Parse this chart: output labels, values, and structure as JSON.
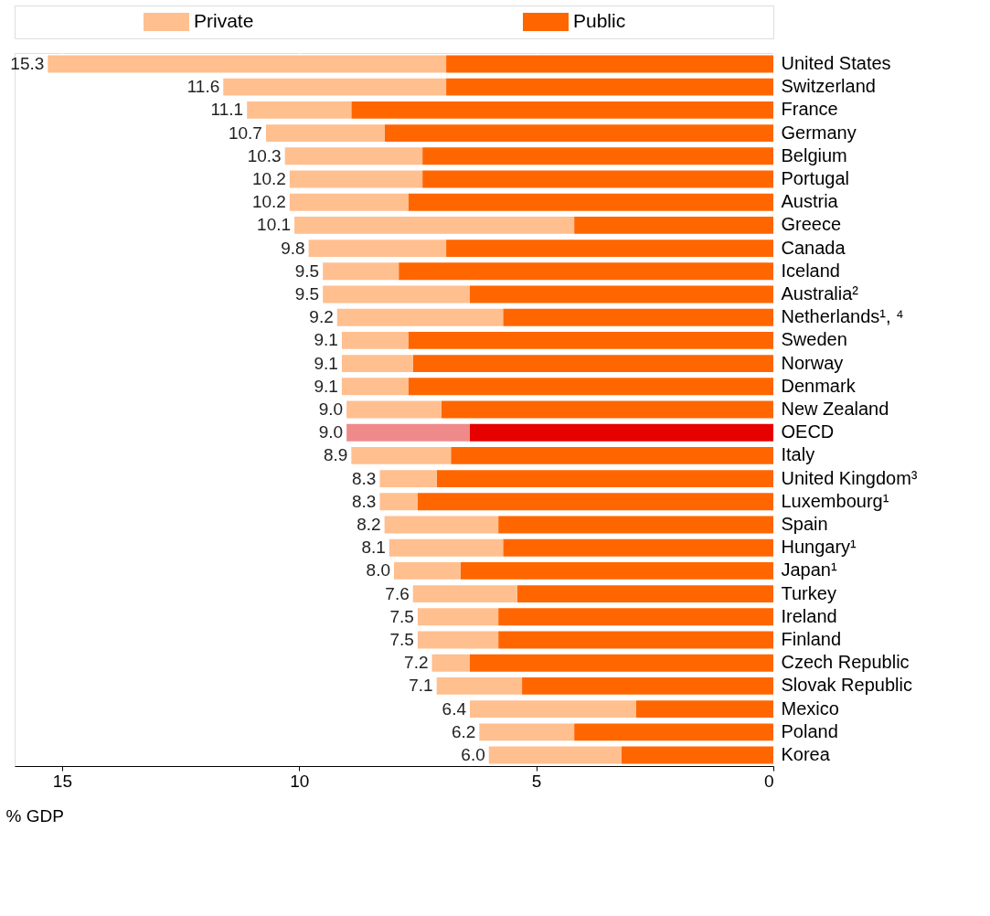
{
  "chart_data": {
    "type": "bar",
    "orientation": "horizontal",
    "stacked": true,
    "xlabel": "% GDP",
    "categories": [
      "United States",
      "Switzerland",
      "France",
      "Germany",
      "Belgium",
      "Portugal",
      "Austria",
      "Greece",
      "Canada",
      "Iceland",
      "Australia²",
      "Netherlands¹, ⁴",
      "Sweden",
      "Norway",
      "Denmark",
      "New Zealand",
      "OECD",
      "Italy",
      "United Kingdom³",
      "Luxembourg¹",
      "Spain",
      "Hungary¹",
      "Japan¹",
      "Turkey",
      "Ireland",
      "Finland",
      "Czech Republic",
      "Slovak Republic",
      "Mexico",
      "Poland",
      "Korea"
    ],
    "series": [
      {
        "name": "Public",
        "color": "#ff6600",
        "colors": [
          "#ff6600",
          "#ff6600",
          "#ff6600",
          "#ff6600",
          "#ff6600",
          "#ff6600",
          "#ff6600",
          "#ff6600",
          "#ff6600",
          "#ff6600",
          "#ff6600",
          "#ff6600",
          "#ff6600",
          "#ff6600",
          "#ff6600",
          "#ff6600",
          "#e60000",
          "#ff6600",
          "#ff6600",
          "#ff6600",
          "#ff6600",
          "#ff6600",
          "#ff6600",
          "#ff6600",
          "#ff6600",
          "#ff6600",
          "#ff6600",
          "#ff6600",
          "#ff6600",
          "#ff6600",
          "#ff6600"
        ],
        "values": [
          6.9,
          6.9,
          8.9,
          8.2,
          7.4,
          7.4,
          7.7,
          4.2,
          6.9,
          7.9,
          6.4,
          5.7,
          7.7,
          7.6,
          7.7,
          7.0,
          6.4,
          6.8,
          7.1,
          7.5,
          5.8,
          5.7,
          6.6,
          5.4,
          5.8,
          5.8,
          6.4,
          5.3,
          2.9,
          4.2,
          3.2
        ]
      },
      {
        "name": "Private",
        "color": "#ffbf8f",
        "colors": [
          "#ffbf8f",
          "#ffbf8f",
          "#ffbf8f",
          "#ffbf8f",
          "#ffbf8f",
          "#ffbf8f",
          "#ffbf8f",
          "#ffbf8f",
          "#ffbf8f",
          "#ffbf8f",
          "#ffbf8f",
          "#ffbf8f",
          "#ffbf8f",
          "#ffbf8f",
          "#ffbf8f",
          "#ffbf8f",
          "#f08a8a",
          "#ffbf8f",
          "#ffbf8f",
          "#ffbf8f",
          "#ffbf8f",
          "#ffbf8f",
          "#ffbf8f",
          "#ffbf8f",
          "#ffbf8f",
          "#ffbf8f",
          "#ffbf8f",
          "#ffbf8f",
          "#ffbf8f",
          "#ffbf8f",
          "#ffbf8f"
        ],
        "values": [
          8.4,
          4.7,
          2.2,
          2.5,
          2.9,
          2.8,
          2.5,
          5.9,
          2.9,
          1.6,
          3.1,
          3.5,
          1.4,
          1.5,
          1.4,
          2.0,
          2.6,
          2.1,
          1.2,
          0.8,
          2.4,
          2.4,
          1.4,
          2.2,
          1.7,
          1.7,
          0.8,
          1.8,
          3.5,
          2.0,
          2.8
        ]
      }
    ],
    "totals": [
      "15.3",
      "11.6",
      "11.1",
      "10.7",
      "10.3",
      "10.2",
      "10.2",
      "10.1",
      "9.8",
      "9.5",
      "9.5",
      "9.2",
      "9.1",
      "9.1",
      "9.1",
      "9.0",
      "9.0",
      "8.9",
      "8.3",
      "8.3",
      "8.2",
      "8.1",
      "8.0",
      "7.6",
      "7.5",
      "7.5",
      "7.2",
      "7.1",
      "6.4",
      "6.2",
      "6.0"
    ],
    "xlim": [
      16,
      0
    ],
    "xticks": [
      0,
      5,
      10,
      15
    ],
    "grid": "x",
    "legend": "top"
  }
}
